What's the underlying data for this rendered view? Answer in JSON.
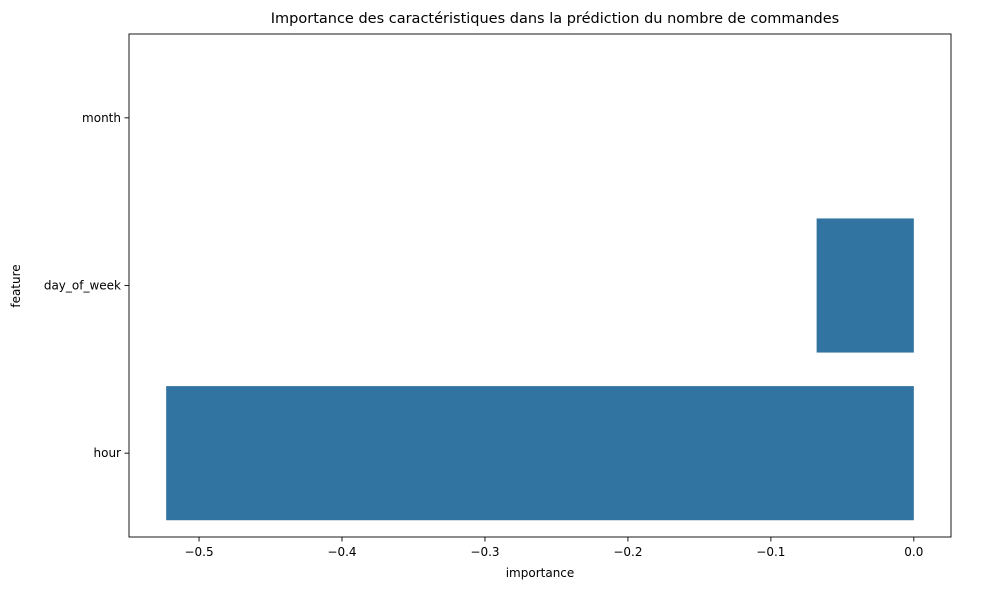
{
  "chart_data": {
    "type": "bar",
    "orientation": "horizontal",
    "title": "Importance des caractéristiques dans la prédiction du nombre de commandes",
    "xlabel": "importance",
    "ylabel": "feature",
    "categories": [
      "month",
      "day_of_week",
      "hour"
    ],
    "values": [
      0.0,
      -0.068,
      -0.523
    ],
    "xlim": [
      -0.549,
      0.026
    ],
    "xticks": [
      -0.5,
      -0.4,
      -0.3,
      -0.2,
      -0.1,
      0.0
    ],
    "xtick_labels": [
      "−0.5",
      "−0.4",
      "−0.3",
      "−0.2",
      "−0.1",
      "0.0"
    ],
    "bar_color": "#3274a1",
    "grid": false,
    "legend": "none"
  }
}
